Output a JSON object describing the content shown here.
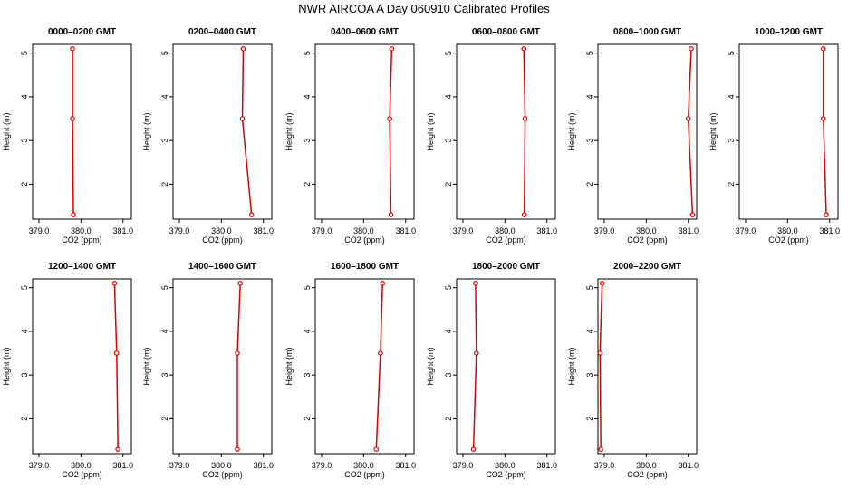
{
  "title": "NWR AIRCOA A  Day 060910  Calibrated Profiles",
  "colors": {
    "line": "#dd0000",
    "axis": "#000000",
    "background": "#ffffff"
  },
  "chart_data": {
    "type": "line",
    "layout": "small-multiples",
    "xlabel": "CO2 (ppm)",
    "ylabel": "Height (m)",
    "xlim": [
      378.85,
      381.2
    ],
    "ylim": [
      1.2,
      5.2
    ],
    "xticks": [
      379.0,
      380.0,
      381.0
    ],
    "xtick_labels": [
      "379.0",
      "380.0",
      "381.0"
    ],
    "yticks": [
      2,
      3,
      4,
      5
    ],
    "ytick_labels": [
      "2",
      "3",
      "4",
      "5"
    ],
    "grid": false,
    "markers": "open-circles",
    "panels": [
      {
        "title": "0000–0200 GMT",
        "points": [
          {
            "x": 379.8,
            "y": 5.1
          },
          {
            "x": 379.8,
            "y": 3.5
          },
          {
            "x": 379.82,
            "y": 1.3
          }
        ]
      },
      {
        "title": "0200–0400 GMT",
        "points": [
          {
            "x": 380.52,
            "y": 5.1
          },
          {
            "x": 380.5,
            "y": 3.5
          },
          {
            "x": 380.72,
            "y": 1.3
          }
        ]
      },
      {
        "title": "0400–0600 GMT",
        "points": [
          {
            "x": 380.67,
            "y": 5.1
          },
          {
            "x": 380.62,
            "y": 3.5
          },
          {
            "x": 380.65,
            "y": 1.3
          }
        ]
      },
      {
        "title": "0600–0800 GMT",
        "points": [
          {
            "x": 380.45,
            "y": 5.1
          },
          {
            "x": 380.48,
            "y": 3.5
          },
          {
            "x": 380.46,
            "y": 1.3
          }
        ]
      },
      {
        "title": "0800–1000 GMT",
        "points": [
          {
            "x": 381.07,
            "y": 5.1
          },
          {
            "x": 381.0,
            "y": 3.5
          },
          {
            "x": 381.1,
            "y": 1.3
          }
        ]
      },
      {
        "title": "1000–1200 GMT",
        "points": [
          {
            "x": 380.85,
            "y": 5.1
          },
          {
            "x": 380.85,
            "y": 3.5
          },
          {
            "x": 380.92,
            "y": 1.3
          }
        ]
      },
      {
        "title": "1200–1400 GMT",
        "points": [
          {
            "x": 380.8,
            "y": 5.1
          },
          {
            "x": 380.85,
            "y": 3.5
          },
          {
            "x": 380.88,
            "y": 1.3
          }
        ]
      },
      {
        "title": "1400–1600 GMT",
        "points": [
          {
            "x": 380.45,
            "y": 5.1
          },
          {
            "x": 380.38,
            "y": 3.5
          },
          {
            "x": 380.38,
            "y": 1.3
          }
        ]
      },
      {
        "title": "1600–1800 GMT",
        "points": [
          {
            "x": 380.45,
            "y": 5.1
          },
          {
            "x": 380.4,
            "y": 3.5
          },
          {
            "x": 380.3,
            "y": 1.3
          }
        ]
      },
      {
        "title": "1800–2000 GMT",
        "points": [
          {
            "x": 379.3,
            "y": 5.1
          },
          {
            "x": 379.32,
            "y": 3.5
          },
          {
            "x": 379.25,
            "y": 1.3
          }
        ]
      },
      {
        "title": "2000–2200 GMT",
        "points": [
          {
            "x": 378.95,
            "y": 5.1
          },
          {
            "x": 378.9,
            "y": 3.5
          },
          {
            "x": 378.92,
            "y": 1.3
          }
        ]
      }
    ]
  }
}
